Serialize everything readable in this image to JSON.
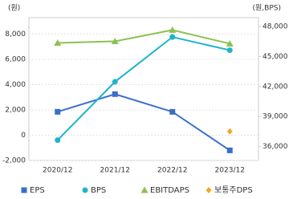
{
  "chart_data": {
    "type": "line",
    "y_label": "(원)",
    "y2_label": "(원,BPS)",
    "categories": [
      "2020/12",
      "2021/12",
      "2022/12",
      "2023/12"
    ],
    "series": [
      {
        "name": "EPS",
        "color": "#3a6fc8",
        "values": [
          1850,
          3250,
          1850,
          -1200
        ]
      },
      {
        "name": "BPS",
        "color": "#1db4cc",
        "values": [
          36640,
          42480,
          46960,
          45640
        ],
        "axis": "y2"
      },
      {
        "name": "EBITDAPS",
        "color": "#8cc152",
        "values": [
          7300,
          7430,
          8320,
          7240
        ]
      },
      {
        "name": "보통주DPS",
        "color": "#f5a623",
        "values": [
          null,
          null,
          null,
          300
        ]
      }
    ],
    "ylim": [
      -2000,
      9300
    ],
    "yticks": [
      {
        "value": -2000,
        "label": "-2,000"
      },
      0,
      {
        "value": 2000,
        "label": "2,000"
      },
      {
        "value": 4000,
        "label": "4,000"
      },
      {
        "value": 6000,
        "label": "6,000"
      },
      {
        "value": 8000,
        "label": "8,000"
      }
    ],
    "y2lim": [
      34600,
      48900
    ],
    "y2ticks": [
      {
        "value": 36000,
        "label": "36,000"
      },
      {
        "value": 39000,
        "label": "39,000"
      },
      {
        "value": 42000,
        "label": "42,000"
      },
      {
        "value": 45000,
        "label": "45,000"
      },
      {
        "value": 48000,
        "label": "48,000"
      }
    ],
    "grid": true
  }
}
